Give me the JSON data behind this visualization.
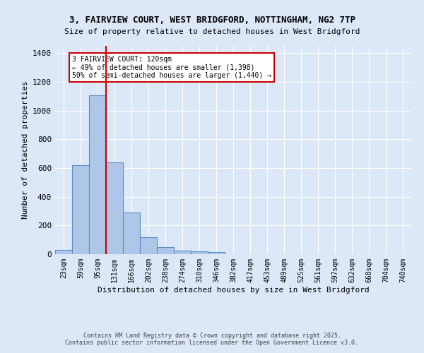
{
  "title1": "3, FAIRVIEW COURT, WEST BRIDGFORD, NOTTINGHAM, NG2 7TP",
  "title2": "Size of property relative to detached houses in West Bridgford",
  "xlabel": "Distribution of detached houses by size in West Bridgford",
  "ylabel": "Number of detached properties",
  "footer1": "Contains HM Land Registry data © Crown copyright and database right 2025.",
  "footer2": "Contains public sector information licensed under the Open Government Licence v3.0.",
  "bin_labels": [
    "23sqm",
    "59sqm",
    "95sqm",
    "131sqm",
    "166sqm",
    "202sqm",
    "238sqm",
    "274sqm",
    "310sqm",
    "346sqm",
    "382sqm",
    "417sqm",
    "453sqm",
    "489sqm",
    "525sqm",
    "561sqm",
    "597sqm",
    "632sqm",
    "668sqm",
    "704sqm",
    "740sqm"
  ],
  "bar_heights": [
    30,
    620,
    1105,
    640,
    290,
    120,
    50,
    25,
    20,
    15,
    0,
    0,
    0,
    0,
    0,
    0,
    0,
    0,
    0,
    0,
    0
  ],
  "bar_color": "#aec6e8",
  "bar_edge_color": "#5b8ec4",
  "bg_color": "#dce8f8",
  "grid_color": "#ffffff",
  "vline_color": "#cc0000",
  "annotation_text": "3 FAIRVIEW COURT: 120sqm\n← 49% of detached houses are smaller (1,398)\n50% of semi-detached houses are larger (1,440) →",
  "annotation_box_color": "#ffffff",
  "annotation_box_edge": "#cc0000",
  "ylim": [
    0,
    1450
  ],
  "yticks": [
    0,
    200,
    400,
    600,
    800,
    1000,
    1200,
    1400
  ]
}
